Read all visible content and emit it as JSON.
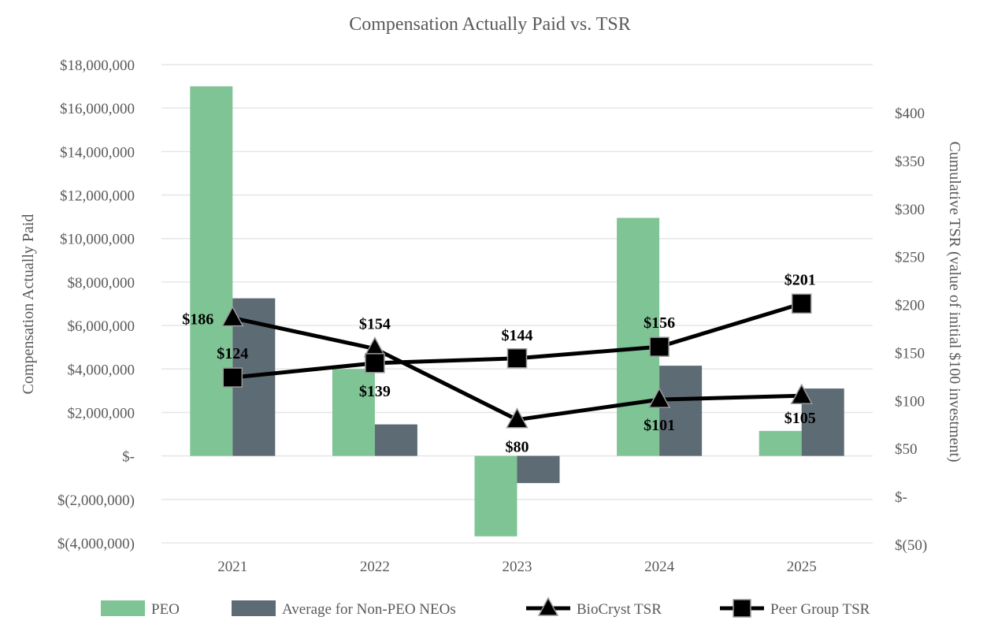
{
  "chart_data": {
    "type": "bar",
    "title": "Compensation Actually Paid vs. TSR",
    "categories": [
      "2021",
      "2022",
      "2023",
      "2024",
      "2025"
    ],
    "y_left": {
      "label": "Compensation Actually Paid",
      "range": [
        -4000000,
        18000000
      ],
      "ticks": [
        -4000000,
        -2000000,
        0,
        2000000,
        4000000,
        6000000,
        8000000,
        10000000,
        12000000,
        14000000,
        16000000,
        18000000
      ],
      "tick_labels": [
        "$(4,000,000)",
        "$(2,000,000)",
        "$-",
        "$2,000,000",
        "$4,000,000",
        "$6,000,000",
        "$8,000,000",
        "$10,000,000",
        "$12,000,000",
        "$14,000,000",
        "$16,000,000",
        "$18,000,000"
      ]
    },
    "y_right": {
      "label": "Cumulative TSR (value of initial $100 investment)",
      "range": [
        -50,
        400
      ],
      "ticks": [
        -50,
        0,
        50,
        100,
        150,
        200,
        250,
        300,
        350,
        400
      ],
      "tick_labels": [
        "$(50)",
        "$-",
        "$50",
        "$100",
        "$150",
        "$200",
        "$250",
        "$300",
        "$350",
        "$400"
      ]
    },
    "grid": true,
    "legend_position": "bottom",
    "bar_series": [
      {
        "name": "PEO",
        "color": "#7fc495",
        "values": [
          17000000,
          4000000,
          -3700000,
          10950000,
          1150000
        ]
      },
      {
        "name": "Average for Non-PEO NEOs",
        "color": "#5d6b74",
        "values": [
          7250000,
          1450000,
          -1250000,
          4150000,
          3100000
        ]
      }
    ],
    "line_series": [
      {
        "name": "BioCryst TSR",
        "marker": "triangle",
        "color": "#000000",
        "values": [
          186,
          154,
          80,
          101,
          105
        ],
        "labels": [
          "$186",
          "$154",
          "$80",
          "$101",
          "$105"
        ]
      },
      {
        "name": "Peer Group TSR",
        "marker": "square",
        "color": "#000000",
        "values": [
          124,
          139,
          144,
          156,
          201
        ],
        "labels": [
          "$124",
          "$139",
          "$144",
          "$156",
          "$201"
        ]
      }
    ]
  }
}
